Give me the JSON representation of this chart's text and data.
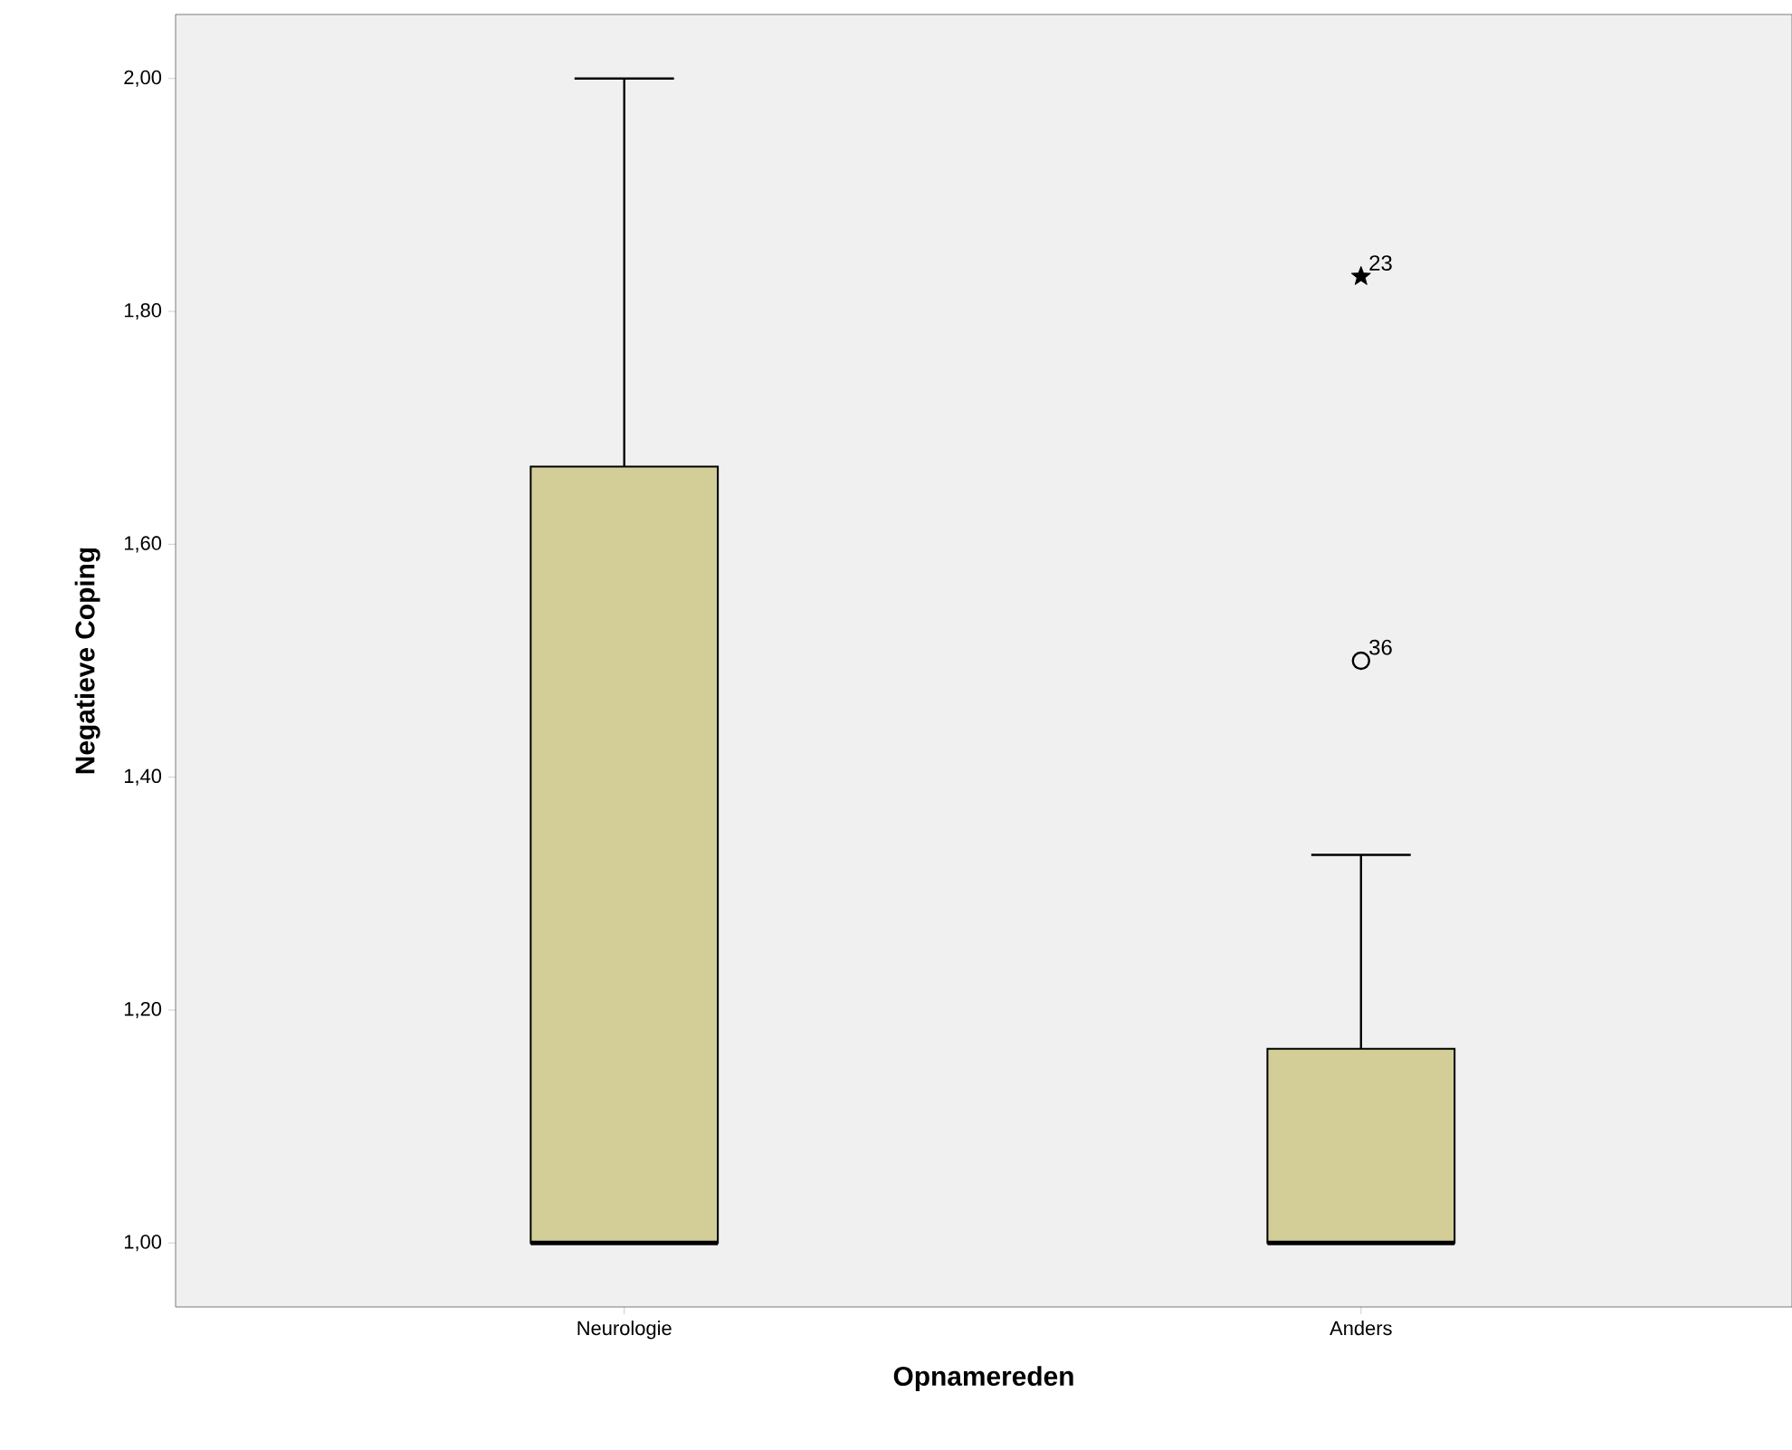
{
  "chart_data": {
    "type": "box",
    "xlabel": "Opnamereden",
    "ylabel": "Negatieve Coping",
    "categories": [
      "Neurologie",
      "Anders"
    ],
    "series": [
      {
        "color": "#d3ce98",
        "marker": "circle",
        "boxes": [
          {
            "low": 1.0,
            "q1": 1.0,
            "median": 1.0,
            "q3": 1.6667,
            "high": 2.0
          },
          {
            "low": 1.0,
            "q1": 1.0,
            "median": 1.0,
            "q3": 1.1667,
            "high": 1.3333
          }
        ]
      },
      {
        "type": "scatter",
        "marker": "circle",
        "color": "#000000",
        "x": [
          "Anders"
        ],
        "values": [
          1.5
        ]
      },
      {
        "type": "scatter",
        "marker": "star",
        "color": "#000000",
        "x": [
          "Anders"
        ],
        "values": [
          1.83
        ]
      }
    ],
    "ylim": [
      0.945,
      2.055
    ],
    "yticks": [
      {
        "value": 1.0,
        "label": "1,00"
      },
      {
        "value": 1.2,
        "label": "1,20"
      },
      {
        "value": 1.4,
        "label": "1,40"
      },
      {
        "value": 1.6,
        "label": "1,60"
      },
      {
        "value": 1.8,
        "label": "1,80"
      },
      {
        "value": 2.0,
        "label": "2,00"
      }
    ],
    "annotations": [
      {
        "text": "23",
        "x": "Anders",
        "y": 1.83
      },
      {
        "text": "36",
        "x": "Anders",
        "y": 1.5
      }
    ]
  }
}
